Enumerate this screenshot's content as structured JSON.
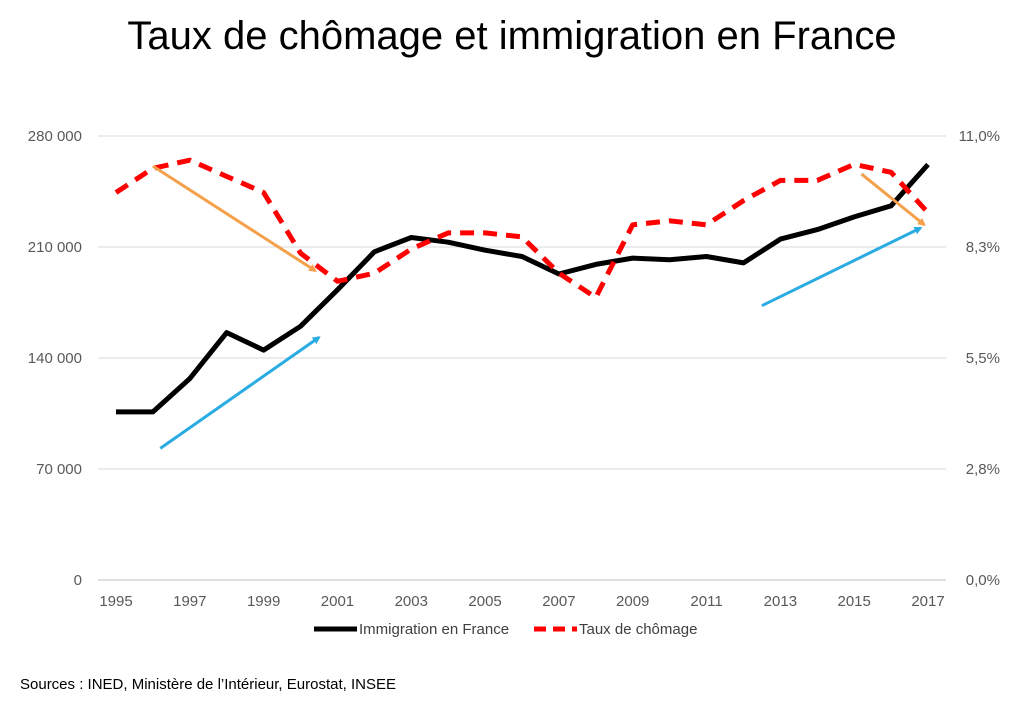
{
  "title": "Taux de chômage et immigration en France",
  "source": "Sources : INED, Ministère de l’Intérieur, Eurostat, INSEE",
  "chart_data": {
    "type": "line",
    "title": "Taux de chômage et immigration en France",
    "x": [
      1995,
      1996,
      1997,
      1998,
      1999,
      2000,
      2001,
      2002,
      2003,
      2004,
      2005,
      2006,
      2007,
      2008,
      2009,
      2010,
      2011,
      2012,
      2013,
      2014,
      2015,
      2016,
      2017
    ],
    "x_ticks": [
      "1995",
      "1997",
      "1999",
      "2001",
      "2003",
      "2005",
      "2007",
      "2009",
      "2011",
      "2013",
      "2015",
      "2017"
    ],
    "y_left_ticks": [
      "0",
      "70 000",
      "140 000",
      "210 000",
      "280 000"
    ],
    "y_left_lim": [
      0,
      280000
    ],
    "y_right_ticks": [
      "0,0%",
      "2,8%",
      "5,5%",
      "8,3%",
      "11,0%"
    ],
    "y_right_lim": [
      0,
      11
    ],
    "grid": true,
    "legend_position": "bottom",
    "series": [
      {
        "name": "Immigration en France",
        "axis": "left",
        "color": "#000000",
        "style": "solid",
        "values": [
          106000,
          106000,
          127000,
          156000,
          145000,
          160000,
          183000,
          207000,
          216000,
          213000,
          208000,
          204000,
          193000,
          199000,
          203000,
          202000,
          204000,
          200000,
          215000,
          221000,
          229000,
          236000,
          262000
        ]
      },
      {
        "name": "Taux de chômage",
        "axis": "right",
        "color": "#ff0000",
        "style": "dashed",
        "values": [
          9.6,
          10.2,
          10.4,
          10.0,
          9.6,
          8.1,
          7.4,
          7.6,
          8.2,
          8.6,
          8.6,
          8.5,
          7.6,
          7.0,
          8.8,
          8.9,
          8.8,
          9.4,
          9.9,
          9.9,
          10.3,
          10.1,
          9.1
        ]
      }
    ],
    "annotations": [
      {
        "type": "arrow",
        "color": "#f5a04a",
        "from": {
          "x": 1996.0,
          "y_left": 261000
        },
        "to": {
          "x": 2000.4,
          "y_left": 195000
        }
      },
      {
        "type": "arrow",
        "color": "#f5a04a",
        "from": {
          "x": 2015.2,
          "y_left": 256000
        },
        "to": {
          "x": 2016.9,
          "y_left": 224000
        }
      },
      {
        "type": "arrow",
        "color": "#2aabe2",
        "from": {
          "x": 1996.2,
          "y_left": 83000
        },
        "to": {
          "x": 2000.5,
          "y_left": 153000
        }
      },
      {
        "type": "arrow",
        "color": "#2aabe2",
        "from": {
          "x": 2012.5,
          "y_left": 173000
        },
        "to": {
          "x": 2016.8,
          "y_left": 222000
        }
      }
    ]
  }
}
